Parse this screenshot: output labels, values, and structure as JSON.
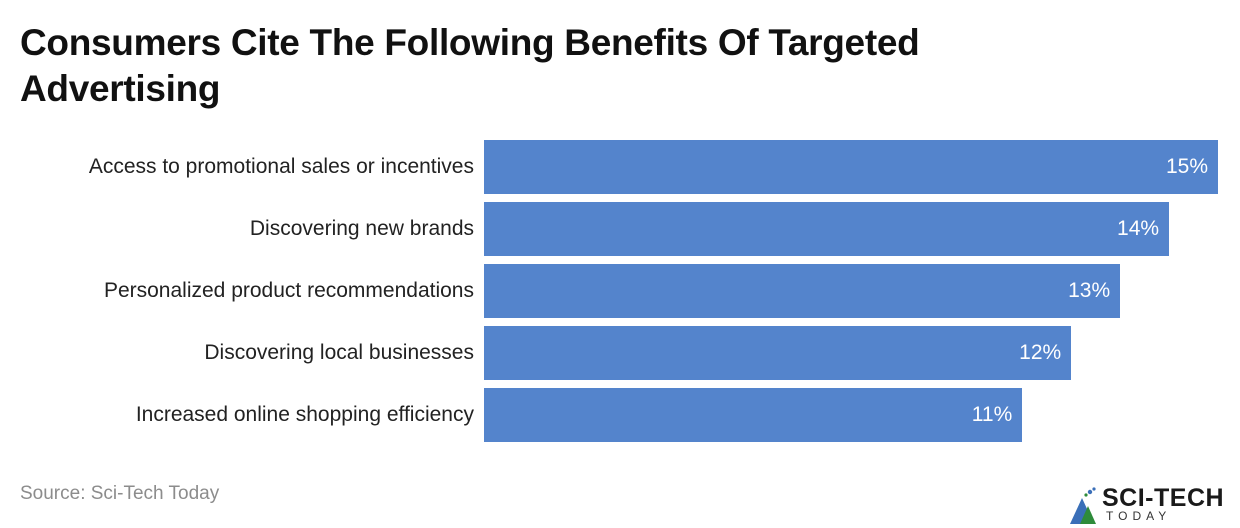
{
  "title": "Consumers Cite The Following Benefits Of Targeted Advertising",
  "source": "Source: Sci-Tech Today",
  "logo": {
    "main": "SCI-TECH",
    "sub": "TODAY"
  },
  "colors": {
    "bar": "#5484cc",
    "label_on_bar": "#ffffff"
  },
  "chart_data": {
    "type": "bar",
    "orientation": "horizontal",
    "title": "Consumers Cite The Following Benefits Of Targeted Advertising",
    "categories": [
      "Access to promotional sales or incentives",
      "Discovering new brands",
      "Personalized product recommendations",
      "Discovering local businesses",
      "Increased online shopping efficiency"
    ],
    "values": [
      15,
      14,
      13,
      12,
      11
    ],
    "value_labels": [
      "15%",
      "14%",
      "13%",
      "12%",
      "11%"
    ],
    "xlabel": "",
    "ylabel": "",
    "unit": "%",
    "grid": false,
    "legend": null
  }
}
